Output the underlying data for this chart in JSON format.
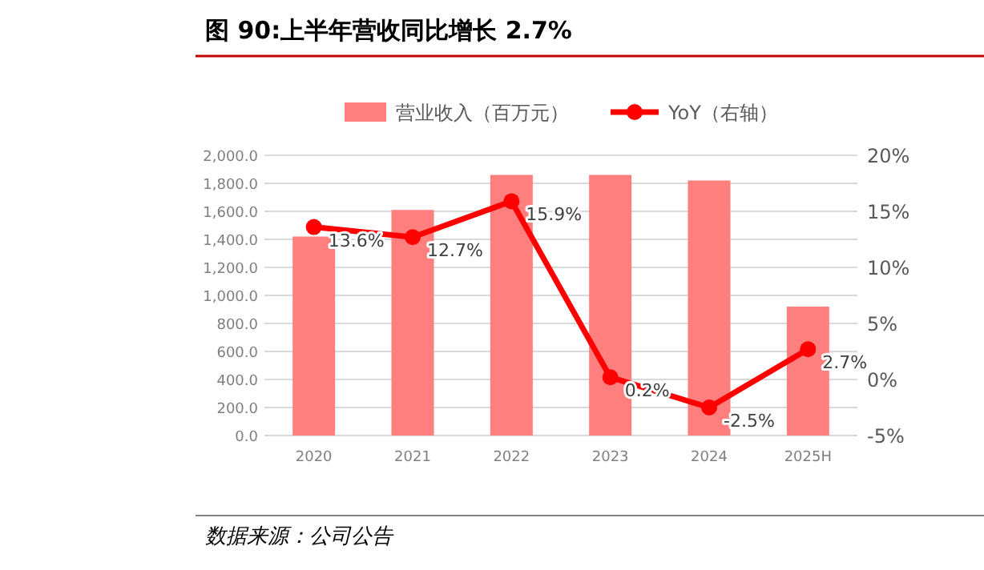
{
  "chart_data": {
    "type": "bar",
    "title": "图 90:上半年营收同比增长 2.7%",
    "categories": [
      "2020",
      "2021",
      "2022",
      "2023",
      "2024",
      "2025H"
    ],
    "series": [
      {
        "name": "营业收入（百万元）",
        "color": "#ff7f7f",
        "values": [
          1420,
          1610,
          1860,
          1860,
          1820,
          920
        ]
      },
      {
        "name": "YoY（右轴）",
        "type": "line",
        "axis": "y2",
        "color": "#ff0000",
        "marker": "circle",
        "line_style": "solid",
        "values": [
          13.6,
          12.7,
          15.9,
          0.2,
          -2.5,
          2.7
        ],
        "value_labels": [
          "13.6%",
          "12.7%",
          "15.9%",
          "0.2%",
          "-2.5%",
          "2.7%"
        ]
      }
    ],
    "ylim": [
      0,
      2000
    ],
    "yticks": [
      {
        "value": 0,
        "label": "0.0"
      },
      {
        "value": 200,
        "label": "200.0"
      },
      {
        "value": 400,
        "label": "400.0"
      },
      {
        "value": 600,
        "label": "600.0"
      },
      {
        "value": 800,
        "label": "800.0"
      },
      {
        "value": 1000,
        "label": "1,000.0"
      },
      {
        "value": 1200,
        "label": "1,200.0"
      },
      {
        "value": 1400,
        "label": "1,400.0"
      },
      {
        "value": 1600,
        "label": "1,600.0"
      },
      {
        "value": 1800,
        "label": "1,800.0"
      },
      {
        "value": 2000,
        "label": "2,000.0"
      }
    ],
    "y2lim": [
      -5,
      20
    ],
    "y2ticks": [
      {
        "value": -5,
        "label": "-5%"
      },
      {
        "value": 0,
        "label": "0%"
      },
      {
        "value": 5,
        "label": "5%"
      },
      {
        "value": 10,
        "label": "10%"
      },
      {
        "value": 15,
        "label": "15%"
      },
      {
        "value": 20,
        "label": "20%"
      }
    ],
    "grid": "y",
    "legend": "top",
    "annotations": [
      "数据来源：公司公告"
    ]
  }
}
